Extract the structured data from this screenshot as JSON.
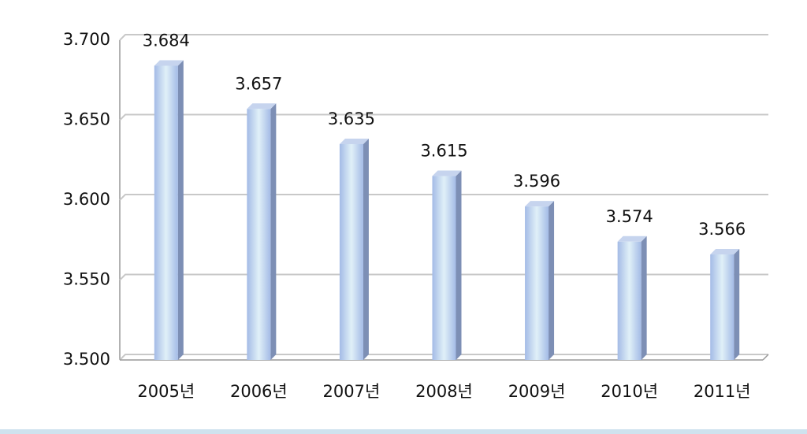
{
  "chart_data": {
    "type": "bar",
    "categories": [
      "2005년",
      "2006년",
      "2007년",
      "2008년",
      "2009년",
      "2010년",
      "2011년"
    ],
    "values": [
      3.684,
      3.657,
      3.635,
      3.615,
      3.596,
      3.574,
      3.566
    ],
    "color": "#a9bfe6",
    "ylim": [
      3.5,
      3.7
    ],
    "yticks": [
      {
        "value": 3.5,
        "label": "3.500"
      },
      {
        "value": 3.55,
        "label": "3.550"
      },
      {
        "value": 3.6,
        "label": "3.600"
      },
      {
        "value": 3.65,
        "label": "3.650"
      },
      {
        "value": 3.7,
        "label": "3.700"
      }
    ],
    "grid": true
  }
}
